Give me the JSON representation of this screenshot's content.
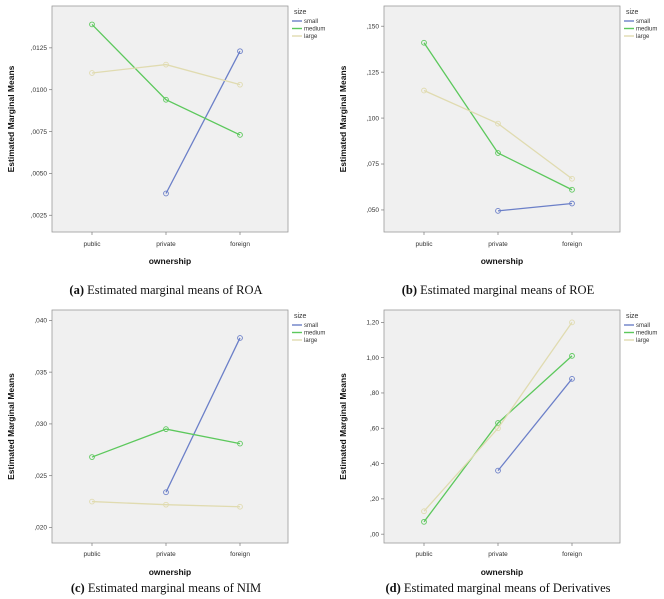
{
  "chart_data": [
    {
      "id": "a",
      "type": "line",
      "caption_label": "(a)",
      "caption_text": "Estimated marginal means of ROA",
      "xlabel": "ownership",
      "ylabel": "Estimated Marginal Means",
      "categories": [
        "public",
        "private",
        "foreign"
      ],
      "ylim": [
        0.0015,
        0.015
      ],
      "yticks": [
        0.0025,
        0.005,
        0.0075,
        0.01,
        0.0125
      ],
      "ytick_labels": [
        ",0025",
        ",0050",
        ",0075",
        ",0100",
        ",0125"
      ],
      "legend_title": "size",
      "series": [
        {
          "name": "small",
          "color": "#6b7fc8",
          "values": [
            null,
            0.0038,
            0.0123
          ]
        },
        {
          "name": "medium",
          "color": "#5cc85c",
          "values": [
            0.0139,
            0.0094,
            0.0073
          ]
        },
        {
          "name": "large",
          "color": "#e0dbb0",
          "values": [
            0.011,
            0.0115,
            0.0103
          ]
        }
      ]
    },
    {
      "id": "b",
      "type": "line",
      "caption_label": "(b)",
      "caption_text": "Estimated marginal means of ROE",
      "xlabel": "ownership",
      "ylabel": "Estimated Marginal Means",
      "categories": [
        "public",
        "private",
        "foreign"
      ],
      "ylim": [
        0.038,
        0.161
      ],
      "yticks": [
        0.05,
        0.075,
        0.1,
        0.125,
        0.15
      ],
      "ytick_labels": [
        ",050",
        ",075",
        ",100",
        ",125",
        ",150"
      ],
      "legend_title": "size",
      "series": [
        {
          "name": "small",
          "color": "#6b7fc8",
          "values": [
            null,
            0.0495,
            0.0535
          ]
        },
        {
          "name": "medium",
          "color": "#5cc85c",
          "values": [
            0.141,
            0.081,
            0.061
          ]
        },
        {
          "name": "large",
          "color": "#e0dbb0",
          "values": [
            0.115,
            0.097,
            0.067
          ]
        }
      ]
    },
    {
      "id": "c",
      "type": "line",
      "caption_label": "(c)",
      "caption_text": "Estimated marginal means of NIM",
      "xlabel": "ownership",
      "ylabel": "Estimated Marginal Means",
      "categories": [
        "public",
        "private",
        "foreign"
      ],
      "ylim": [
        0.0185,
        0.041
      ],
      "yticks": [
        0.02,
        0.025,
        0.03,
        0.035,
        0.04
      ],
      "ytick_labels": [
        ",020",
        ",025",
        ",030",
        ",035",
        ",040"
      ],
      "legend_title": "size",
      "series": [
        {
          "name": "small",
          "color": "#6b7fc8",
          "values": [
            null,
            0.0234,
            0.0383
          ]
        },
        {
          "name": "medium",
          "color": "#5cc85c",
          "values": [
            0.0268,
            0.0295,
            0.0281
          ]
        },
        {
          "name": "large",
          "color": "#e0dbb0",
          "values": [
            0.0225,
            0.0222,
            0.022
          ]
        }
      ]
    },
    {
      "id": "d",
      "type": "line",
      "caption_label": "(d)",
      "caption_text": "Estimated marginal means of Derivatives",
      "xlabel": "ownership",
      "ylabel": "Estimated Marginal Means",
      "categories": [
        "public",
        "private",
        "foreign"
      ],
      "ylim": [
        -0.05,
        1.27
      ],
      "yticks": [
        0.0,
        0.2,
        0.4,
        0.6,
        0.8,
        1.0,
        1.2
      ],
      "ytick_labels": [
        ",00",
        ",20",
        ",40",
        ",60",
        ",80",
        "1,00",
        "1,20"
      ],
      "legend_title": "size",
      "series": [
        {
          "name": "small",
          "color": "#6b7fc8",
          "values": [
            null,
            0.36,
            0.88
          ]
        },
        {
          "name": "medium",
          "color": "#5cc85c",
          "values": [
            0.07,
            0.63,
            1.01
          ]
        },
        {
          "name": "large",
          "color": "#e0dbb0",
          "values": [
            0.13,
            0.6,
            1.2
          ]
        }
      ]
    }
  ]
}
